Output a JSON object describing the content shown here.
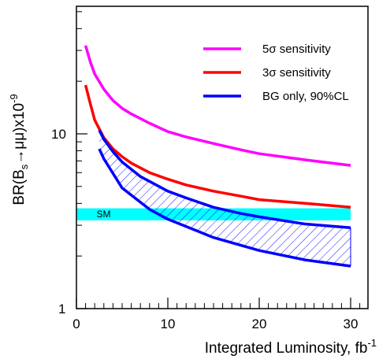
{
  "chart_data": {
    "type": "line",
    "xlabel": "Integrated Luminosity, fb",
    "xlabel_sup": "-1",
    "ylabel": "BR(B",
    "ylabel_sub": "s",
    "ylabel_rest": "→μμ)x10",
    "ylabel_sup": "-9",
    "x_ticks": [
      "0",
      "10",
      "20",
      "30"
    ],
    "y_ticks": [
      "1",
      "10"
    ],
    "xlim": [
      -0.5,
      33
    ],
    "ylim": [
      1,
      60
    ],
    "y_scale": "log",
    "legend_position": "top-right",
    "series": [
      {
        "name": "5σ sensitivity",
        "color": "#ff00ff",
        "x": [
          1,
          1.5,
          2,
          3,
          4,
          5,
          6,
          8,
          10,
          12,
          15,
          18,
          20,
          25,
          30
        ],
        "y": [
          32,
          26,
          22,
          18,
          15.5,
          14,
          13,
          11.5,
          10.3,
          9.6,
          8.8,
          8.1,
          7.7,
          7.1,
          6.6
        ]
      },
      {
        "name": "3σ sensitivity",
        "color": "#ff0000",
        "x": [
          1,
          1.5,
          2,
          3,
          4,
          5,
          6,
          8,
          10,
          12,
          15,
          18,
          20,
          25,
          30
        ],
        "y": [
          19,
          15,
          12,
          9.5,
          8.2,
          7.4,
          6.8,
          6.0,
          5.5,
          5.1,
          4.7,
          4.4,
          4.2,
          4.0,
          3.8
        ]
      },
      {
        "name": "BG only, 90%CL",
        "color": "#0000ff",
        "x": [
          2.5,
          3,
          4,
          5,
          7,
          10,
          12,
          15,
          18,
          20,
          25,
          30
        ],
        "y": [
          10.5,
          9.3,
          7.9,
          6.9,
          5.7,
          4.7,
          4.3,
          3.8,
          3.5,
          3.35,
          3.05,
          2.9
        ]
      },
      {
        "name": "",
        "color": "#0000ff",
        "x": [
          2.5,
          3,
          5,
          8,
          10,
          15,
          20,
          25,
          30
        ],
        "y": [
          8.2,
          7.2,
          4.9,
          3.7,
          3.25,
          2.55,
          2.15,
          1.9,
          1.75
        ]
      }
    ],
    "band": {
      "label": "SM",
      "color": "#00ffff",
      "y_range": [
        3.2,
        3.75
      ]
    },
    "hatch_region": {
      "between_series": [
        2,
        3
      ],
      "x_range": [
        2.5,
        30
      ],
      "color": "#0000ff"
    }
  }
}
